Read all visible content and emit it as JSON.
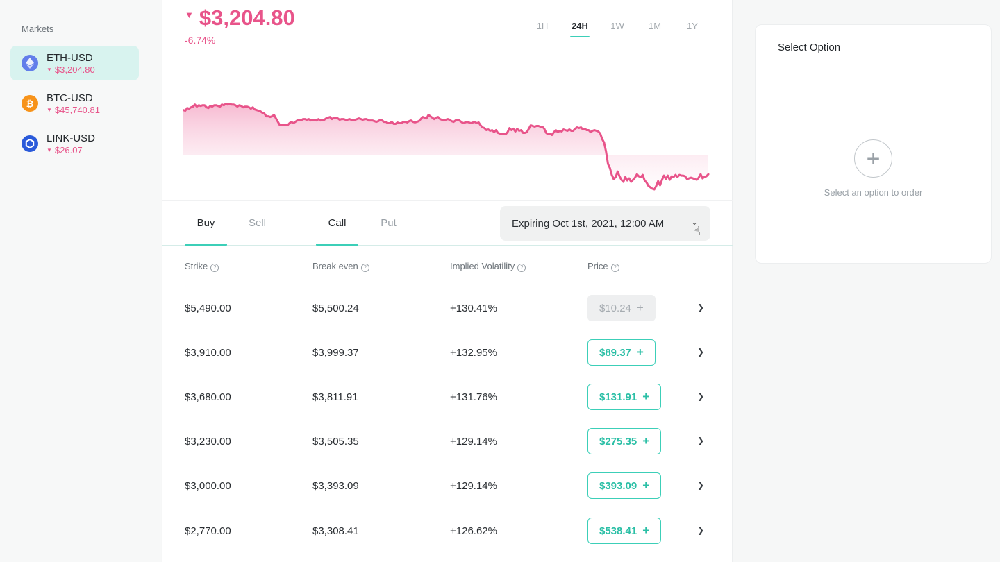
{
  "sidebar": {
    "title": "Markets",
    "markets": [
      {
        "name": "ETH-USD",
        "price": "$3,204.80",
        "icon": "ethereum-icon",
        "color": "#627eea"
      },
      {
        "name": "BTC-USD",
        "price": "$45,740.81",
        "icon": "bitcoin-icon",
        "color": "#f7931a"
      },
      {
        "name": "LINK-USD",
        "price": "$26.07",
        "icon": "chainlink-icon",
        "color": "#2a5ada"
      }
    ]
  },
  "header": {
    "price": "$3,204.80",
    "change": "-6.74%",
    "ranges": [
      "1H",
      "24H",
      "1W",
      "1M",
      "1Y"
    ],
    "active_range": "24H"
  },
  "chart_data": {
    "type": "area",
    "color": "#e8548a",
    "values": [
      63,
      64,
      60,
      61,
      59,
      58,
      55,
      58,
      56,
      57,
      56,
      56,
      59,
      60,
      57,
      58,
      56,
      56,
      57,
      58,
      55,
      56,
      54,
      55,
      54,
      55,
      55,
      56,
      58,
      56,
      57,
      59,
      58,
      58,
      59,
      61,
      59,
      62,
      63,
      64,
      65,
      67,
      68,
      72,
      72,
      73,
      72,
      70,
      75,
      80,
      85,
      85,
      84,
      85,
      85,
      82,
      80,
      82,
      80,
      78,
      77,
      78,
      76,
      76,
      77,
      76,
      78,
      77,
      77,
      78,
      76,
      78,
      77,
      77,
      75,
      74,
      73,
      76,
      74,
      74,
      75,
      77,
      76,
      76,
      77,
      77,
      76,
      77,
      78,
      77,
      76,
      75,
      76,
      77,
      76,
      76,
      78,
      78,
      78,
      79,
      80,
      79,
      77,
      78,
      80,
      80,
      82,
      82,
      80,
      83,
      83,
      81,
      82,
      82,
      80,
      80,
      81,
      79,
      78,
      80,
      81,
      80,
      79,
      76,
      73,
      74,
      75,
      70,
      72,
      74,
      76,
      74,
      73,
      76,
      77,
      78,
      77,
      76,
      77,
      79,
      80,
      78,
      77,
      78,
      80,
      82,
      81,
      80,
      81,
      82,
      81,
      80,
      82,
      81,
      85,
      88,
      89,
      92,
      91,
      93,
      92,
      95,
      92,
      96,
      97,
      97,
      98,
      98,
      95,
      89,
      92,
      90,
      94,
      90,
      93,
      92,
      96,
      96,
      95,
      90,
      85,
      86,
      87,
      86,
      86,
      87,
      87,
      90,
      96,
      98,
      97,
      99,
      95,
      92,
      95,
      93,
      94,
      91,
      92,
      93,
      91,
      93,
      93,
      90,
      88,
      89,
      88,
      91,
      90,
      92,
      92,
      95,
      93,
      92,
      93,
      94,
      97,
      105,
      110,
      123,
      141,
      147,
      157,
      163,
      160,
      152,
      159,
      164,
      167,
      160,
      165,
      162,
      167,
      164,
      161,
      156,
      159,
      160,
      157,
      165,
      168,
      173,
      175,
      177,
      178,
      173,
      166,
      172,
      164,
      158,
      163,
      158,
      164,
      159,
      160,
      157,
      160,
      157,
      158,
      158,
      159,
      163,
      162,
      161,
      162,
      163,
      164,
      161,
      156,
      162,
      160,
      159,
      156
    ]
  },
  "trade_tabs": {
    "side": [
      "Buy",
      "Sell"
    ],
    "active_side": "Buy",
    "type": [
      "Call",
      "Put"
    ],
    "active_type": "Call",
    "expiry": "Expiring Oct 1st, 2021, 12:00 AM"
  },
  "table": {
    "headers": {
      "strike": "Strike",
      "break_even": "Break even",
      "iv": "Implied Volatility",
      "price": "Price"
    },
    "rows": [
      {
        "strike": "$5,490.00",
        "break_even": "$5,500.24",
        "iv": "+130.41%",
        "price": "$10.24",
        "disabled": true
      },
      {
        "strike": "$3,910.00",
        "break_even": "$3,999.37",
        "iv": "+132.95%",
        "price": "$89.37",
        "disabled": false
      },
      {
        "strike": "$3,680.00",
        "break_even": "$3,811.91",
        "iv": "+131.76%",
        "price": "$131.91",
        "disabled": false
      },
      {
        "strike": "$3,230.00",
        "break_even": "$3,505.35",
        "iv": "+129.14%",
        "price": "$275.35",
        "disabled": false
      },
      {
        "strike": "$3,000.00",
        "break_even": "$3,393.09",
        "iv": "+129.14%",
        "price": "$393.09",
        "disabled": false
      },
      {
        "strike": "$2,770.00",
        "break_even": "$3,308.41",
        "iv": "+126.62%",
        "price": "$538.41",
        "disabled": false
      }
    ]
  },
  "panel": {
    "title": "Select Option",
    "hint": "Select an option to order"
  }
}
